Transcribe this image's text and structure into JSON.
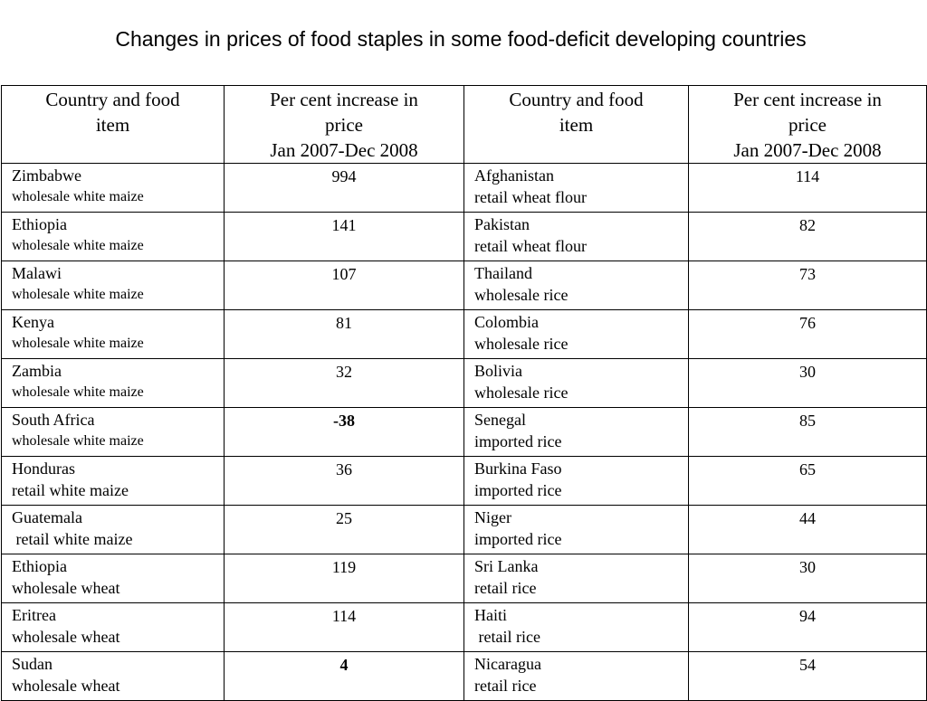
{
  "title": "Changes in prices of food staples in some food-deficit developing countries",
  "table": {
    "headers": [
      "Country and food item",
      "Per cent increase in price Jan 2007-Dec 2008",
      "Country and food item",
      "Per cent increase in price Jan 2007-Dec 2008"
    ],
    "header_lines": {
      "country": [
        "Country and food",
        "item"
      ],
      "increase": [
        "Per cent increase in",
        "price",
        "Jan 2007-Dec 2008"
      ]
    },
    "rows": [
      {
        "left": {
          "country": "Zimbabwe",
          "item": "wholesale white maize",
          "value": "994",
          "bold": false
        },
        "right": {
          "country": "Afghanistan",
          "item": "retail wheat flour",
          "value": "114",
          "bold": false
        }
      },
      {
        "left": {
          "country": "Ethiopia",
          "item": "wholesale white maize",
          "value": "141",
          "bold": false
        },
        "right": {
          "country": "Pakistan",
          "item": "retail wheat flour",
          "value": "82",
          "bold": false
        }
      },
      {
        "left": {
          "country": "Malawi",
          "item": "wholesale white maize",
          "value": "107",
          "bold": false
        },
        "right": {
          "country": "Thailand",
          "item": "wholesale rice",
          "value": "73",
          "bold": false
        }
      },
      {
        "left": {
          "country": "Kenya",
          "item": "wholesale white maize",
          "value": "81",
          "bold": false
        },
        "right": {
          "country": "Colombia",
          "item": "wholesale rice",
          "value": "76",
          "bold": false
        }
      },
      {
        "left": {
          "country": "Zambia",
          "item": "wholesale white maize",
          "value": "32",
          "bold": false
        },
        "right": {
          "country": "Bolivia",
          "item": "wholesale rice",
          "value": "30",
          "bold": false
        }
      },
      {
        "left": {
          "country": "South Africa",
          "item": "wholesale white maize",
          "value": "-38",
          "bold": true
        },
        "right": {
          "country": "Senegal",
          "item": "imported rice",
          "value": "85",
          "bold": false
        }
      },
      {
        "left": {
          "country": "Honduras",
          "item": "retail white maize",
          "value": "36",
          "bold": false
        },
        "right": {
          "country": "Burkina Faso",
          "item": "imported rice",
          "value": "65",
          "bold": false
        }
      },
      {
        "left": {
          "country": "Guatemala",
          "item": " retail white maize",
          "value": "25",
          "bold": false
        },
        "right": {
          "country": "Niger",
          "item": "imported rice",
          "value": "44",
          "bold": false
        }
      },
      {
        "left": {
          "country": "Ethiopia",
          "item": "wholesale wheat",
          "value": "119",
          "bold": false
        },
        "right": {
          "country": "Sri Lanka",
          "item": "retail rice",
          "value": "30",
          "bold": false
        }
      },
      {
        "left": {
          "country": "Eritrea",
          "item": "wholesale wheat",
          "value": "114",
          "bold": false
        },
        "right": {
          "country": "Haiti",
          "item": " retail rice",
          "value": "94",
          "bold": false
        }
      },
      {
        "left": {
          "country": "Sudan",
          "item": "wholesale wheat",
          "value": "4",
          "bold": true
        },
        "right": {
          "country": "Nicaragua",
          "item": "retail rice",
          "value": "54",
          "bold": false
        }
      }
    ]
  }
}
